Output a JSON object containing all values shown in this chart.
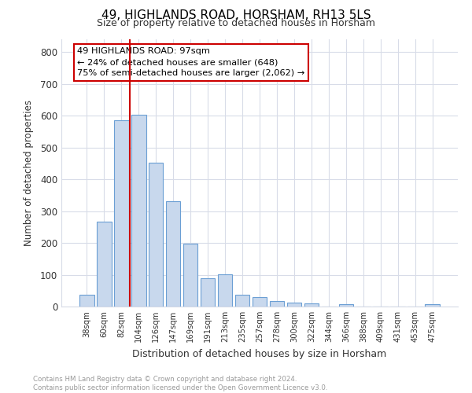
{
  "title1": "49, HIGHLANDS ROAD, HORSHAM, RH13 5LS",
  "title2": "Size of property relative to detached houses in Horsham",
  "xlabel": "Distribution of detached houses by size in Horsham",
  "ylabel": "Number of detached properties",
  "categories": [
    "38sqm",
    "60sqm",
    "82sqm",
    "104sqm",
    "126sqm",
    "147sqm",
    "169sqm",
    "191sqm",
    "213sqm",
    "235sqm",
    "257sqm",
    "278sqm",
    "300sqm",
    "322sqm",
    "344sqm",
    "366sqm",
    "388sqm",
    "409sqm",
    "431sqm",
    "453sqm",
    "475sqm"
  ],
  "values": [
    38,
    268,
    585,
    603,
    452,
    330,
    197,
    90,
    101,
    38,
    30,
    17,
    13,
    10,
    0,
    8,
    0,
    0,
    0,
    0,
    7
  ],
  "bar_color": "#c8d8ed",
  "bar_edge_color": "#6b9fd4",
  "vline_x": 3.0,
  "vline_color": "#cc0000",
  "annotation_text": "49 HIGHLANDS ROAD: 97sqm\n← 24% of detached houses are smaller (648)\n75% of semi-detached houses are larger (2,062) →",
  "annotation_box_color": "#ffffff",
  "annotation_box_edge": "#cc0000",
  "footer_text": "Contains HM Land Registry data © Crown copyright and database right 2024.\nContains public sector information licensed under the Open Government Licence v3.0.",
  "background_color": "#ffffff",
  "grid_color": "#d8dce8",
  "ylim": [
    0,
    840
  ],
  "yticks": [
    0,
    100,
    200,
    300,
    400,
    500,
    600,
    700,
    800
  ]
}
